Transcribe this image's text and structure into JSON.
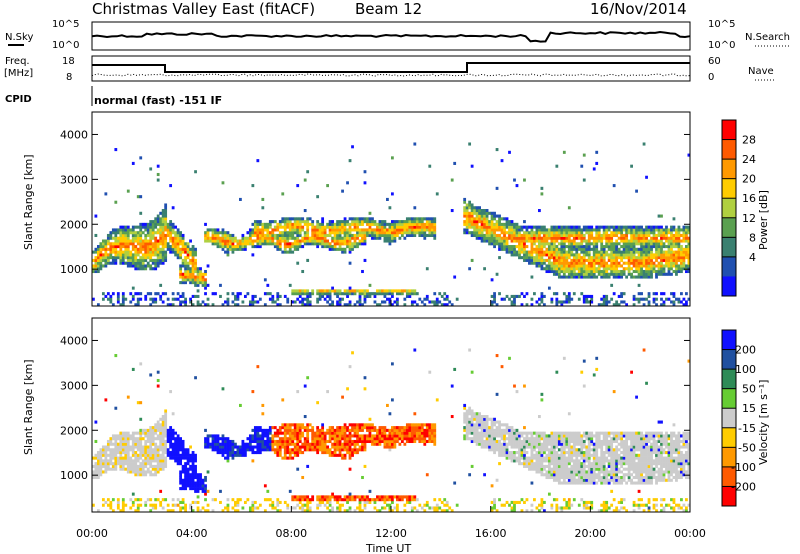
{
  "header": {
    "title": "Christmas Valley East (fitACF)",
    "beam": "Beam 12",
    "date": "16/Nov/2014"
  },
  "status_panels": {
    "nsky_label": "N.Sky",
    "nsearch_label": "N.Search",
    "nsky_ticks": [
      "10^5",
      "10^0"
    ],
    "nsearch_ticks": [
      "10^5",
      "10^0"
    ],
    "freq_label_1": "Freq.",
    "freq_label_2": "[MHz]",
    "freq_ticks": [
      "18",
      "8"
    ],
    "nave_label": "Nave",
    "nave_ticks": [
      "60",
      "0"
    ],
    "cpid_label": "CPID",
    "cpid_value": "normal (fast) -151 IF"
  },
  "colorbars": {
    "power": {
      "label": "Power [dB]",
      "ticks": [
        "28",
        "24",
        "20",
        "16",
        "12",
        "8",
        "4"
      ],
      "colors": [
        "#ff0000",
        "#ff5a00",
        "#ff9900",
        "#ffcc00",
        "#b0d040",
        "#5aa050",
        "#3a8070",
        "#2050b0",
        "#1010ff"
      ]
    },
    "velocity": {
      "label": "Velocity [m s⁻¹]",
      "ticks": [
        "200",
        "100",
        "50",
        "15",
        "-15",
        "-50",
        "-100",
        "-200"
      ],
      "colors": [
        "#1010ff",
        "#2050a0",
        "#2e8b57",
        "#66cc33",
        "#cccccc",
        "#ffcc00",
        "#ff9900",
        "#ff5a00",
        "#ff0000"
      ]
    }
  },
  "chart_data": [
    {
      "type": "heatmap",
      "title": "Power",
      "xlabel": "Time UT",
      "ylabel": "Slant Range [km]",
      "xlim": [
        "00:00",
        "24:00"
      ],
      "ylim": [
        180,
        4500
      ],
      "x_ticks": [
        "00:00",
        "04:00",
        "08:00",
        "12:00",
        "16:00",
        "20:00",
        "00:00"
      ],
      "y_ticks": [
        1000,
        2000,
        3000,
        4000
      ],
      "colorbar": "Power [dB]"
    },
    {
      "type": "heatmap",
      "title": "Velocity",
      "xlabel": "Time UT",
      "ylabel": "Slant Range [km]",
      "xlim": [
        "00:00",
        "24:00"
      ],
      "ylim": [
        180,
        4500
      ],
      "x_ticks": [
        "00:00",
        "04:00",
        "08:00",
        "12:00",
        "16:00",
        "20:00",
        "00:00"
      ],
      "y_ticks": [
        1000,
        2000,
        3000,
        4000
      ],
      "colorbar": "Velocity [m s⁻¹]"
    }
  ],
  "axes": {
    "x_ticks": [
      "00:00",
      "04:00",
      "08:00",
      "12:00",
      "16:00",
      "20:00",
      "00:00"
    ],
    "y_ticks": [
      "1000",
      "2000",
      "3000",
      "4000"
    ],
    "xlabel": "Time UT",
    "ylabel": "Slant Range [km]"
  }
}
